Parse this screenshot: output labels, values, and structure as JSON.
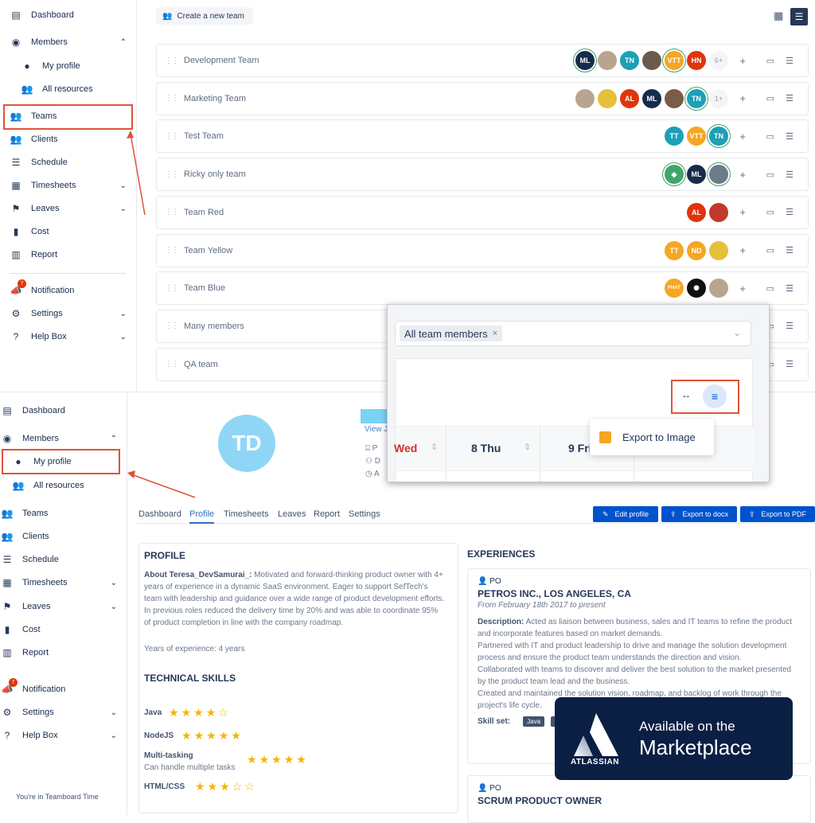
{
  "top_sidebar": {
    "items": [
      {
        "label": "Dashboard",
        "icon": "dashboard-icon"
      },
      {
        "label": "Members",
        "icon": "user-circle-icon"
      },
      {
        "label": "My profile",
        "icon": "user-icon"
      },
      {
        "label": "All resources",
        "icon": "users-icon"
      },
      {
        "label": "Teams",
        "icon": "teams-icon"
      },
      {
        "label": "Clients",
        "icon": "clients-icon"
      },
      {
        "label": "Schedule",
        "icon": "schedule-icon"
      },
      {
        "label": "Timesheets",
        "icon": "table-icon"
      },
      {
        "label": "Leaves",
        "icon": "flag-icon"
      },
      {
        "label": "Cost",
        "icon": "cost-icon"
      },
      {
        "label": "Report",
        "icon": "chart-icon"
      },
      {
        "label": "Notification",
        "icon": "megaphone-icon",
        "badge": "7"
      },
      {
        "label": "Settings",
        "icon": "gear-icon"
      },
      {
        "label": "Help Box",
        "icon": "help-icon"
      }
    ]
  },
  "teams_page": {
    "create_label": "Create a new team",
    "teams": [
      {
        "name": "Development Team",
        "avatars": [
          {
            "t": "ML",
            "c": "#172b4d",
            "ring": true
          },
          {
            "t": "",
            "c": "#b9a58f"
          },
          {
            "t": "TN",
            "c": "#1d9fb8"
          },
          {
            "t": "",
            "c": "#6b5a4e"
          },
          {
            "t": "VTT",
            "c": "#f5a623",
            "ring": true
          },
          {
            "t": "HN",
            "c": "#de350b"
          }
        ],
        "more": "6+"
      },
      {
        "name": "Marketing Team",
        "avatars": [
          {
            "t": "",
            "c": "#b9a58f"
          },
          {
            "t": "",
            "c": "#e5c13a"
          },
          {
            "t": "AL",
            "c": "#de350b"
          },
          {
            "t": "ML",
            "c": "#172b4d"
          },
          {
            "t": "",
            "c": "#7a5c48"
          },
          {
            "t": "TN",
            "c": "#1d9fb8",
            "ring": true
          }
        ],
        "more": "1+"
      },
      {
        "name": "Test Team",
        "avatars": [
          {
            "t": "TT",
            "c": "#1d9fb8"
          },
          {
            "t": "VTT",
            "c": "#f5a623"
          },
          {
            "t": "TN",
            "c": "#1d9fb8",
            "ring": true
          }
        ],
        "more": ""
      },
      {
        "name": "Ricky only team",
        "avatars": [
          {
            "t": "◆",
            "c": "#3fa56b",
            "ring": true
          },
          {
            "t": "ML",
            "c": "#172b4d"
          },
          {
            "t": "",
            "c": "#6d7a8a",
            "ring": true
          }
        ],
        "more": ""
      },
      {
        "name": "Team Red",
        "avatars": [
          {
            "t": "AL",
            "c": "#de350b"
          },
          {
            "t": "",
            "c": "#c0392b"
          }
        ],
        "more": ""
      },
      {
        "name": "Team Yellow",
        "avatars": [
          {
            "t": "TT",
            "c": "#f5a623"
          },
          {
            "t": "ND",
            "c": "#f5a623"
          },
          {
            "t": "",
            "c": "#e5c13a"
          }
        ],
        "more": ""
      },
      {
        "name": "Team Blue",
        "avatars": [
          {
            "t": "PHAT",
            "c": "#f5a623"
          },
          {
            "t": "✺",
            "c": "#111"
          },
          {
            "t": "",
            "c": "#b9a58f"
          }
        ],
        "more": ""
      },
      {
        "name": "Many members",
        "avatars": [],
        "more": ""
      },
      {
        "name": "QA team",
        "avatars": [],
        "more": ""
      }
    ]
  },
  "popup": {
    "chip": "All team members",
    "chip_remove": "×",
    "days": [
      "Wed",
      "8 Thu",
      "9 Fri"
    ],
    "menu_item": "Export to Image"
  },
  "bottom_sidebar": {
    "items": [
      {
        "label": "Dashboard",
        "icon": "dashboard-icon"
      },
      {
        "label": "Members",
        "icon": "user-circle-icon"
      },
      {
        "label": "My profile",
        "icon": "user-icon"
      },
      {
        "label": "All resources",
        "icon": "users-icon"
      },
      {
        "label": "Teams",
        "icon": "teams-icon"
      },
      {
        "label": "Clients",
        "icon": "clients-icon"
      },
      {
        "label": "Schedule",
        "icon": "schedule-icon"
      },
      {
        "label": "Timesheets",
        "icon": "table-icon"
      },
      {
        "label": "Leaves",
        "icon": "flag-icon"
      },
      {
        "label": "Cost",
        "icon": "cost-icon"
      },
      {
        "label": "Report",
        "icon": "chart-icon"
      },
      {
        "label": "Notification",
        "icon": "megaphone-icon",
        "badge": "7"
      },
      {
        "label": "Settings",
        "icon": "gear-icon"
      },
      {
        "label": "Help Box",
        "icon": "help-icon"
      }
    ],
    "footer": "You're in Teamboard Time"
  },
  "profile_page": {
    "avatar_initials": "TD",
    "view_link": "View J",
    "info_letters": [
      "P",
      "D",
      "A"
    ],
    "tabs": [
      "Dashboard",
      "Profile",
      "Timesheets",
      "Leaves",
      "Report",
      "Settings"
    ],
    "active_tab": "Profile",
    "buttons": [
      "Edit profile",
      "Export to docx",
      "Export to PDF"
    ],
    "profile": {
      "heading": "PROFILE",
      "about_label": "About Teresa_DevSamurai_:",
      "about": " Motivated and forward-thinking product owner with 4+ years of experience in a dynamic SaaS environment. Eager to support SefTech's team with leadership and guidance over a wide range of product development efforts. In previous roles reduced the delivery time by 20% and was able to coordinate 95% of product completion in line with the company roadmap.",
      "years": "Years of experience: 4 years"
    },
    "skills": {
      "heading": "TECHNICAL SKILLS",
      "items": [
        {
          "name": "Java",
          "rating": 4,
          "sub": ""
        },
        {
          "name": "NodeJS",
          "rating": 5,
          "sub": ""
        },
        {
          "name": "Multi-tasking",
          "rating": 5,
          "sub": "Can handle multiple tasks"
        },
        {
          "name": "HTML/CSS",
          "rating": 3,
          "sub": ""
        }
      ]
    },
    "experiences": {
      "heading": "EXPERIENCES",
      "items": [
        {
          "role": "PO",
          "company": "PETROS INC., LOS ANGELES, CA",
          "period": "From February 18th 2017 to present",
          "desc_label": "Description:",
          "desc": " Acted as liaison between business, sales and IT teams to refine the product and incorporate features based on market demands.\nPartnered with IT and product leadership to drive and manage the solution development process and ensure the product team understands the direction and vision.\nCollaborated with teams to discover and deliver the best solution to the market presented by the product team lead and the business.\nCreated and maintained the solution vision, roadmap, and backlog of work through the project's life cycle.\nTranslated features i… g, and prioritizing thi…",
          "skill_label": "Skill set:",
          "skills": [
            "Java",
            "H"
          ]
        },
        {
          "role": "PO",
          "company": "SCRUM PRODUCT OWNER"
        }
      ]
    }
  },
  "badge": {
    "brand": "ATLASSIAN",
    "line1": "Available on the",
    "line2": "Marketplace"
  },
  "colors": {
    "primary": "#0052cc",
    "highlight": "#e0533a",
    "badge_bg": "#0b1f44",
    "star": "#f5b400"
  }
}
